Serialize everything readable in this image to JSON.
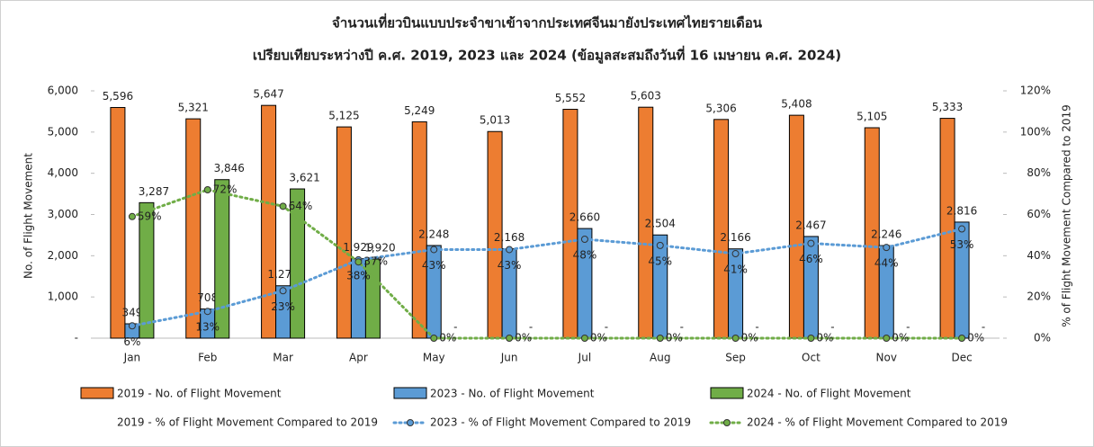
{
  "chart_data": {
    "type": "bar",
    "title": "จำนวนเที่ยวบินแบบประจำขาเข้าจากประเทศจีนมายังประเทศไทยรายเดือน",
    "subtitle": "เปรียบเทียบระหว่างปี ค.ศ. 2019, 2023 และ 2024 (ข้อมูลสะสมถึงวันที่ 16 เมษายน ค.ศ. 2024)",
    "y_label": "No. of Flight Movement",
    "y2_label": "% of Flight Movement Compared to 2019",
    "categories": [
      "Jan",
      "Feb",
      "Mar",
      "Apr",
      "May",
      "Jun",
      "Jul",
      "Aug",
      "Sep",
      "Oct",
      "Nov",
      "Dec"
    ],
    "ylim": [
      0,
      6000
    ],
    "yticks": [
      {
        "value": 0,
        "label": "-"
      },
      {
        "value": 1000,
        "label": "1,000"
      },
      {
        "value": 2000,
        "label": "2,000"
      },
      {
        "value": 3000,
        "label": "3,000"
      },
      {
        "value": 4000,
        "label": "4,000"
      },
      {
        "value": 5000,
        "label": "5,000"
      },
      {
        "value": 6000,
        "label": "6,000"
      }
    ],
    "y2lim": [
      0,
      120
    ],
    "y2ticks": [
      {
        "value": 0,
        "label": "0%"
      },
      {
        "value": 20,
        "label": "20%"
      },
      {
        "value": 40,
        "label": "40%"
      },
      {
        "value": 60,
        "label": "60%"
      },
      {
        "value": 80,
        "label": "80%"
      },
      {
        "value": 100,
        "label": "100%"
      },
      {
        "value": 120,
        "label": "120%"
      }
    ],
    "series": [
      {
        "name": "2019 - No. of Flight Movement",
        "type": "bar",
        "color": "#ed7d31",
        "values": [
          5596,
          5321,
          5647,
          5125,
          5249,
          5013,
          5552,
          5603,
          5306,
          5408,
          5105,
          5333
        ],
        "value_labels": [
          "5,596",
          "5,321",
          "5,647",
          "5,125",
          "5,249",
          "5,013",
          "5,552",
          "5,603",
          "5,306",
          "5,408",
          "5,105",
          "5,333"
        ]
      },
      {
        "name": "2023 - No. of Flight Movement",
        "type": "bar",
        "color": "#5b9bd5",
        "values": [
          349,
          708,
          1271,
          1929,
          2248,
          2168,
          2660,
          2504,
          2166,
          2467,
          2246,
          2816
        ],
        "value_labels": [
          "349",
          "708",
          "1,271",
          "1,929",
          "2,248",
          "2,168",
          "2,660",
          "2,504",
          "2,166",
          "2,467",
          "2,246",
          "2,816"
        ]
      },
      {
        "name": "2024 - No. of Flight Movement",
        "type": "bar",
        "color": "#70ad47",
        "values": [
          3287,
          3846,
          3621,
          1920,
          0,
          0,
          0,
          0,
          0,
          0,
          0,
          0
        ],
        "value_labels": [
          "3,287",
          "3,846",
          "3,621",
          "1,920",
          "-",
          "-",
          "-",
          "-",
          "-",
          "-",
          "-",
          "-"
        ]
      },
      {
        "name": "2019 - % of Flight Movement Compared to 2019",
        "type": "line",
        "axis": "y2",
        "color": "none"
      },
      {
        "name": "2023 - % of Flight Movement Compared to 2019",
        "type": "line",
        "axis": "y2",
        "color": "#5b9bd5",
        "values": [
          6,
          13,
          23,
          38,
          43,
          43,
          48,
          45,
          41,
          46,
          44,
          53
        ],
        "value_labels": [
          "6%",
          "13%",
          "23%",
          "38%",
          "43%",
          "43%",
          "48%",
          "45%",
          "41%",
          "46%",
          "44%",
          "53%"
        ]
      },
      {
        "name": "2024 - % of Flight Movement Compared to 2019",
        "type": "line",
        "axis": "y2",
        "color": "#70ad47",
        "values": [
          59,
          72,
          64,
          37,
          0,
          0,
          0,
          0,
          0,
          0,
          0,
          0
        ],
        "value_labels": [
          "59%",
          "72%",
          "64%",
          "37%",
          "0%",
          "0%",
          "0%",
          "0%",
          "0%",
          "0%",
          "0%",
          "0%"
        ]
      }
    ]
  }
}
